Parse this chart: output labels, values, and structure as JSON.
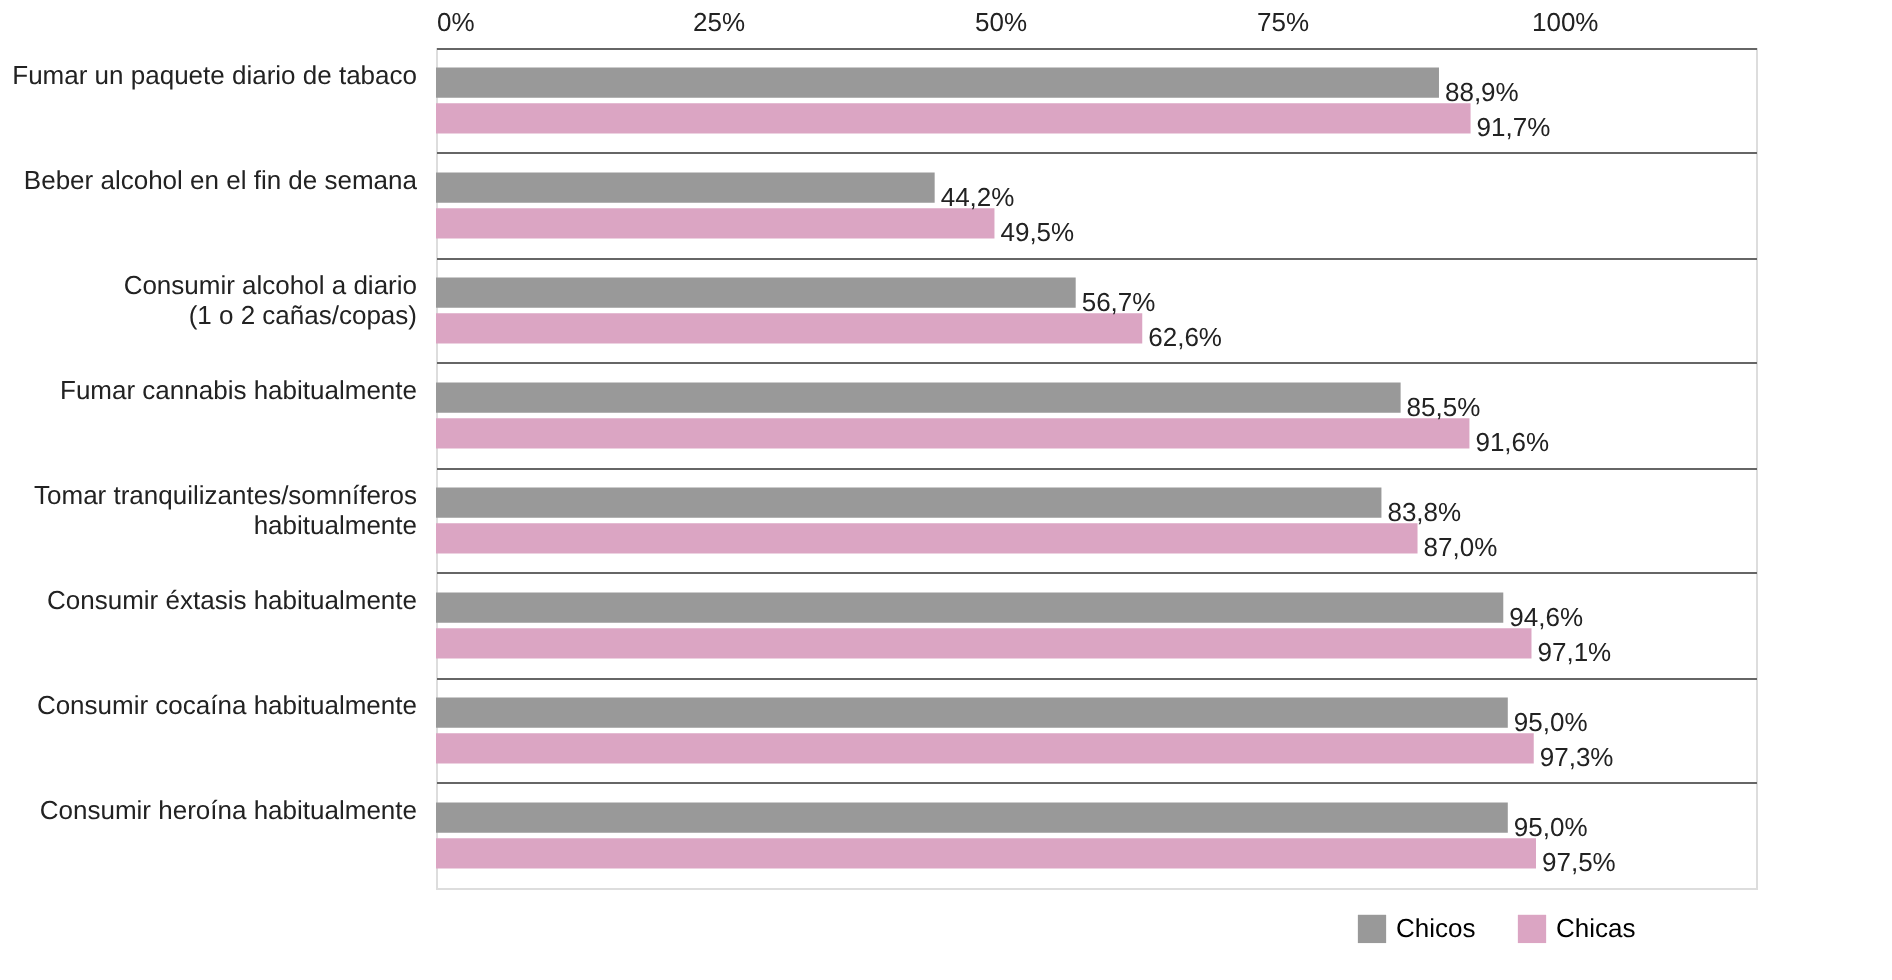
{
  "chart_data": {
    "type": "bar",
    "orientation": "horizontal",
    "categories": [
      "Fumar un paquete diario de tabaco",
      "Beber alcohol en el fin de semana",
      "Consumir alcohol a diario\n(1 o 2 cañas/copas)",
      "Fumar cannabis habitualmente",
      "Tomar tranquilizantes/somníferos\nhabitualmente",
      "Consumir éxtasis habitualmente",
      "Consumir cocaína habitualmente",
      "Consumir heroína habitualmente"
    ],
    "series": [
      {
        "name": "Chicos",
        "color": "#999999",
        "values": [
          88.9,
          44.2,
          56.7,
          85.5,
          83.8,
          94.6,
          95.0,
          95.0
        ],
        "value_labels": [
          "88,9%",
          "44,2%",
          "56,7%",
          "85,5%",
          "83,8%",
          "94,6%",
          "95,0%",
          "95,0%"
        ]
      },
      {
        "name": "Chicas",
        "color": "#dba5c3",
        "values": [
          91.7,
          49.5,
          62.6,
          91.6,
          87.0,
          97.1,
          97.3,
          97.5
        ],
        "value_labels": [
          "91,7%",
          "49,5%",
          "62,6%",
          "91,6%",
          "87,0%",
          "97,1%",
          "97,3%",
          "97,5%"
        ]
      }
    ],
    "xlim": [
      0,
      117
    ],
    "xticks": [
      {
        "value": 0,
        "label": "0%"
      },
      {
        "value": 25,
        "label": "25%"
      },
      {
        "value": 50,
        "label": "50%"
      },
      {
        "value": 75,
        "label": "75%"
      },
      {
        "value": 100,
        "label": "100%"
      }
    ],
    "grid": "y",
    "legend": "bottom right"
  }
}
